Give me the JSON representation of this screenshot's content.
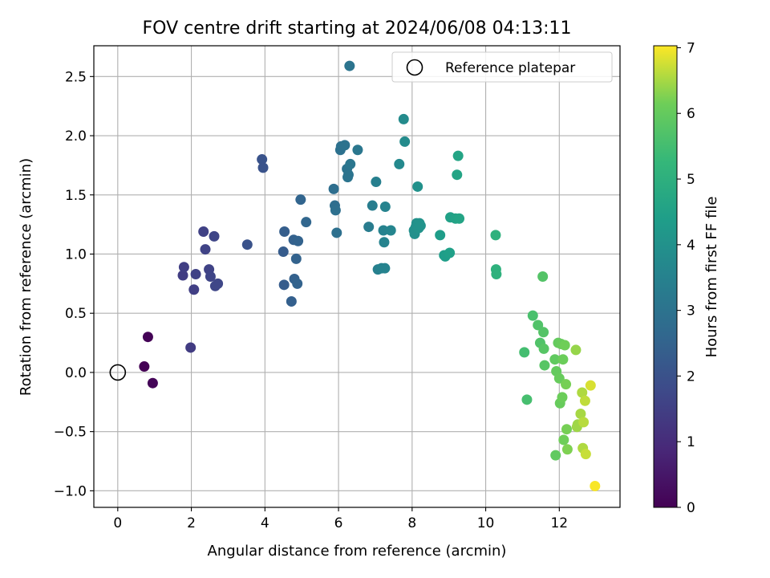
{
  "chart_data": {
    "type": "scatter",
    "title": "FOV centre drift starting at 2024/06/08 04:13:11",
    "xlabel": "Angular distance from reference (arcmin)",
    "ylabel": "Rotation from reference (arcmin)",
    "xlim": [
      -0.65,
      13.65
    ],
    "ylim": [
      -1.14,
      2.76
    ],
    "xticks": [
      "0",
      "2",
      "4",
      "6",
      "8",
      "10",
      "12"
    ],
    "yticks": [
      "−1.0",
      "−0.5",
      "0.0",
      "0.5",
      "1.0",
      "1.5",
      "2.0",
      "2.5"
    ],
    "grid": true,
    "legend": {
      "position": "top-right",
      "entries": [
        "Reference platepar"
      ]
    },
    "reference_point": {
      "x": 0,
      "y": 0
    },
    "colorbar": {
      "label": "Hours from first FF file",
      "colormap": "viridis",
      "range": [
        0,
        7.03
      ],
      "ticks": [
        "0",
        "1",
        "2",
        "3",
        "4",
        "5",
        "6",
        "7"
      ]
    },
    "points": [
      {
        "x": 0.72,
        "y": 0.05,
        "h": 0.0
      },
      {
        "x": 0.82,
        "y": 0.3,
        "h": 0.05
      },
      {
        "x": 0.95,
        "y": -0.09,
        "h": 0.1
      },
      {
        "x": 1.98,
        "y": 0.21,
        "h": 1.4
      },
      {
        "x": 1.77,
        "y": 0.82,
        "h": 1.45
      },
      {
        "x": 1.8,
        "y": 0.89,
        "h": 1.5
      },
      {
        "x": 2.07,
        "y": 0.7,
        "h": 1.5
      },
      {
        "x": 2.12,
        "y": 0.83,
        "h": 1.55
      },
      {
        "x": 2.33,
        "y": 1.19,
        "h": 1.55
      },
      {
        "x": 2.38,
        "y": 1.04,
        "h": 1.6
      },
      {
        "x": 2.48,
        "y": 0.87,
        "h": 1.6
      },
      {
        "x": 2.52,
        "y": 0.81,
        "h": 1.65
      },
      {
        "x": 2.62,
        "y": 1.15,
        "h": 1.65
      },
      {
        "x": 2.65,
        "y": 0.73,
        "h": 1.7
      },
      {
        "x": 2.72,
        "y": 0.75,
        "h": 1.7
      },
      {
        "x": 3.52,
        "y": 1.08,
        "h": 2.0
      },
      {
        "x": 3.92,
        "y": 1.8,
        "h": 2.05
      },
      {
        "x": 3.95,
        "y": 1.73,
        "h": 2.05
      },
      {
        "x": 4.5,
        "y": 1.02,
        "h": 2.3
      },
      {
        "x": 4.52,
        "y": 0.74,
        "h": 2.3
      },
      {
        "x": 4.53,
        "y": 1.19,
        "h": 2.35
      },
      {
        "x": 4.72,
        "y": 0.6,
        "h": 2.4
      },
      {
        "x": 4.78,
        "y": 1.12,
        "h": 2.45
      },
      {
        "x": 4.8,
        "y": 0.79,
        "h": 2.45
      },
      {
        "x": 4.85,
        "y": 0.96,
        "h": 2.5
      },
      {
        "x": 4.88,
        "y": 0.75,
        "h": 2.5
      },
      {
        "x": 4.9,
        "y": 1.11,
        "h": 2.5
      },
      {
        "x": 4.97,
        "y": 1.46,
        "h": 2.55
      },
      {
        "x": 5.12,
        "y": 1.27,
        "h": 2.6
      },
      {
        "x": 5.87,
        "y": 1.55,
        "h": 2.85
      },
      {
        "x": 5.9,
        "y": 1.41,
        "h": 2.85
      },
      {
        "x": 5.92,
        "y": 1.37,
        "h": 2.9
      },
      {
        "x": 5.95,
        "y": 1.18,
        "h": 2.9
      },
      {
        "x": 6.05,
        "y": 1.88,
        "h": 2.95
      },
      {
        "x": 6.07,
        "y": 1.91,
        "h": 2.95
      },
      {
        "x": 6.17,
        "y": 1.92,
        "h": 3.0
      },
      {
        "x": 6.23,
        "y": 1.72,
        "h": 3.0
      },
      {
        "x": 6.25,
        "y": 1.65,
        "h": 3.05
      },
      {
        "x": 6.27,
        "y": 1.67,
        "h": 3.05
      },
      {
        "x": 6.3,
        "y": 2.59,
        "h": 3.05
      },
      {
        "x": 6.32,
        "y": 1.76,
        "h": 3.1
      },
      {
        "x": 6.52,
        "y": 1.88,
        "h": 3.15
      },
      {
        "x": 6.82,
        "y": 1.23,
        "h": 3.3
      },
      {
        "x": 6.92,
        "y": 1.41,
        "h": 3.35
      },
      {
        "x": 7.02,
        "y": 1.61,
        "h": 3.4
      },
      {
        "x": 7.07,
        "y": 0.87,
        "h": 3.45
      },
      {
        "x": 7.17,
        "y": 0.88,
        "h": 3.5
      },
      {
        "x": 7.22,
        "y": 1.2,
        "h": 3.5
      },
      {
        "x": 7.24,
        "y": 1.1,
        "h": 3.55
      },
      {
        "x": 7.26,
        "y": 0.88,
        "h": 3.55
      },
      {
        "x": 7.27,
        "y": 1.4,
        "h": 3.55
      },
      {
        "x": 7.42,
        "y": 1.2,
        "h": 3.6
      },
      {
        "x": 7.65,
        "y": 1.76,
        "h": 3.75
      },
      {
        "x": 7.77,
        "y": 2.14,
        "h": 3.8
      },
      {
        "x": 7.8,
        "y": 1.95,
        "h": 3.8
      },
      {
        "x": 8.05,
        "y": 1.2,
        "h": 3.95
      },
      {
        "x": 8.07,
        "y": 1.17,
        "h": 3.95
      },
      {
        "x": 8.1,
        "y": 1.23,
        "h": 4.0
      },
      {
        "x": 8.12,
        "y": 1.26,
        "h": 4.0
      },
      {
        "x": 8.15,
        "y": 1.57,
        "h": 4.0
      },
      {
        "x": 8.18,
        "y": 1.22,
        "h": 4.05
      },
      {
        "x": 8.2,
        "y": 1.26,
        "h": 4.05
      },
      {
        "x": 8.23,
        "y": 1.24,
        "h": 4.05
      },
      {
        "x": 8.76,
        "y": 1.16,
        "h": 4.35
      },
      {
        "x": 8.87,
        "y": 0.99,
        "h": 4.4
      },
      {
        "x": 8.9,
        "y": 0.98,
        "h": 4.4
      },
      {
        "x": 9.02,
        "y": 1.01,
        "h": 4.45
      },
      {
        "x": 9.04,
        "y": 1.31,
        "h": 4.5
      },
      {
        "x": 9.18,
        "y": 1.3,
        "h": 4.55
      },
      {
        "x": 9.22,
        "y": 1.67,
        "h": 4.6
      },
      {
        "x": 9.25,
        "y": 1.83,
        "h": 4.6
      },
      {
        "x": 9.28,
        "y": 1.3,
        "h": 4.6
      },
      {
        "x": 10.27,
        "y": 1.16,
        "h": 5.05
      },
      {
        "x": 10.28,
        "y": 0.87,
        "h": 5.05
      },
      {
        "x": 10.29,
        "y": 0.83,
        "h": 5.05
      },
      {
        "x": 11.05,
        "y": 0.17,
        "h": 5.5
      },
      {
        "x": 11.12,
        "y": -0.23,
        "h": 5.55
      },
      {
        "x": 11.28,
        "y": 0.48,
        "h": 5.6
      },
      {
        "x": 11.42,
        "y": 0.4,
        "h": 5.7
      },
      {
        "x": 11.48,
        "y": 0.25,
        "h": 5.7
      },
      {
        "x": 11.55,
        "y": 0.81,
        "h": 5.75
      },
      {
        "x": 11.57,
        "y": 0.34,
        "h": 5.75
      },
      {
        "x": 11.58,
        "y": 0.2,
        "h": 5.8
      },
      {
        "x": 11.6,
        "y": 0.06,
        "h": 5.8
      },
      {
        "x": 11.88,
        "y": 0.11,
        "h": 5.95
      },
      {
        "x": 11.9,
        "y": -0.7,
        "h": 5.95
      },
      {
        "x": 11.92,
        "y": 0.01,
        "h": 6.0
      },
      {
        "x": 11.97,
        "y": 0.25,
        "h": 6.0
      },
      {
        "x": 12.0,
        "y": -0.05,
        "h": 6.05
      },
      {
        "x": 12.02,
        "y": -0.26,
        "h": 6.05
      },
      {
        "x": 12.05,
        "y": 0.24,
        "h": 6.05
      },
      {
        "x": 12.08,
        "y": -0.21,
        "h": 6.1
      },
      {
        "x": 12.1,
        "y": 0.11,
        "h": 6.1
      },
      {
        "x": 12.12,
        "y": -0.57,
        "h": 6.15
      },
      {
        "x": 12.15,
        "y": 0.23,
        "h": 6.15
      },
      {
        "x": 12.18,
        "y": -0.1,
        "h": 6.2
      },
      {
        "x": 12.2,
        "y": -0.48,
        "h": 6.2
      },
      {
        "x": 12.22,
        "y": -0.65,
        "h": 6.25
      },
      {
        "x": 12.45,
        "y": 0.19,
        "h": 6.4
      },
      {
        "x": 12.48,
        "y": -0.46,
        "h": 6.45
      },
      {
        "x": 12.5,
        "y": -0.44,
        "h": 6.45
      },
      {
        "x": 12.58,
        "y": -0.35,
        "h": 6.5
      },
      {
        "x": 12.62,
        "y": -0.17,
        "h": 6.55
      },
      {
        "x": 12.64,
        "y": -0.64,
        "h": 6.55
      },
      {
        "x": 12.66,
        "y": -0.42,
        "h": 6.6
      },
      {
        "x": 12.7,
        "y": -0.24,
        "h": 6.65
      },
      {
        "x": 12.72,
        "y": -0.69,
        "h": 6.7
      },
      {
        "x": 12.85,
        "y": -0.11,
        "h": 6.8
      },
      {
        "x": 12.97,
        "y": -0.96,
        "h": 7.0
      }
    ]
  }
}
